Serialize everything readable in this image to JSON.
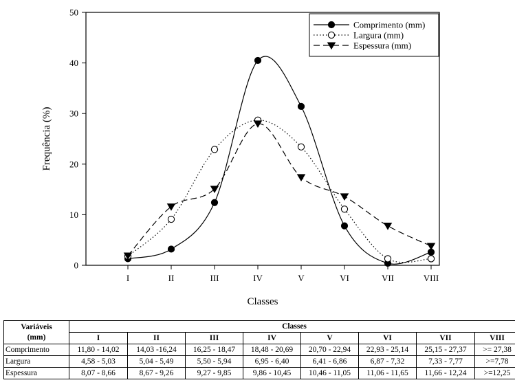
{
  "chart_data": {
    "type": "line",
    "xlabel": "Classes",
    "ylabel": "Frequência (%)",
    "categories": [
      "I",
      "II",
      "III",
      "IV",
      "V",
      "VI",
      "VII",
      "VIII"
    ],
    "ylim": [
      0,
      50
    ],
    "yticks": [
      0,
      10,
      20,
      30,
      40,
      50
    ],
    "legend_position": "top-right",
    "grid": false,
    "series": [
      {
        "name": "Comprimento (mm)",
        "marker": "filled-circle",
        "line_style": "solid",
        "values": [
          1.3,
          3.2,
          12.4,
          40.5,
          31.4,
          7.8,
          0.4,
          2.6
        ]
      },
      {
        "name": "Largura (mm)",
        "marker": "open-circle",
        "line_style": "dotted",
        "values": [
          1.8,
          9.1,
          22.9,
          28.7,
          23.4,
          11.1,
          1.3,
          1.3
        ]
      },
      {
        "name": "Espessura (mm)",
        "marker": "filled-triangle-down",
        "line_style": "dashed",
        "values": [
          1.9,
          11.6,
          15.1,
          28.0,
          17.4,
          13.6,
          7.8,
          3.8
        ]
      }
    ]
  },
  "table": {
    "header_variable": [
      "Variáveis",
      "(mm)"
    ],
    "header_classes": "Classes",
    "class_labels": [
      "I",
      "II",
      "III",
      "IV",
      "V",
      "VI",
      "VII",
      "VIII"
    ],
    "rows": [
      {
        "label": "Comprimento",
        "values": [
          "11,80 - 14,02",
          "14,03 -16,24",
          "16,25 - 18,47",
          "18,48 - 20,69",
          "20,70 - 22,94",
          "22,93 - 25,14",
          "25,15 - 27,37",
          ">= 27,38"
        ]
      },
      {
        "label": "Largura",
        "values": [
          "4,58 - 5,03",
          "5,04 - 5,49",
          "5,50 - 5,94",
          "6,95 - 6,40",
          "6,41 - 6,86",
          "6,87 - 7,32",
          "7,33 - 7,77",
          ">=7,78"
        ]
      },
      {
        "label": "Espessura",
        "values": [
          "8,07 - 8,66",
          "8,67 - 9,26",
          "9,27 - 9,85",
          "9,86 - 10,45",
          "10,46 - 11,05",
          "11,06 - 11,65",
          "11,66 - 12,24",
          ">=12,25"
        ]
      }
    ]
  }
}
